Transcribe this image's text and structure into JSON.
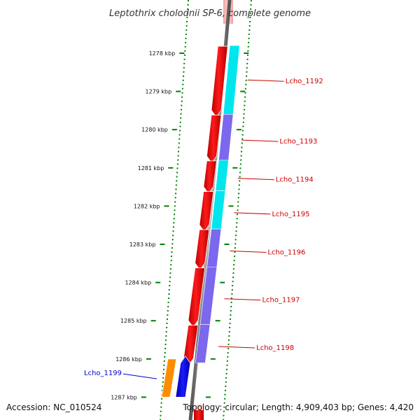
{
  "title": "Leptothrix cholodnii SP-6, complete genome",
  "accession": "Accession: NC_010524",
  "summary": "Topology: circular; Length: 4,909,403 bp; Genes: 4,420",
  "ticks": [
    {
      "label": "1278 kbp",
      "kbp": 1278
    },
    {
      "label": "1279 kbp",
      "kbp": 1279
    },
    {
      "label": "1280 kbp",
      "kbp": 1280
    },
    {
      "label": "1281 kbp",
      "kbp": 1281
    },
    {
      "label": "1282 kbp",
      "kbp": 1282
    },
    {
      "label": "1283 kbp",
      "kbp": 1283
    },
    {
      "label": "1284 kbp",
      "kbp": 1284
    },
    {
      "label": "1285 kbp",
      "kbp": 1285
    },
    {
      "label": "1286 kbp",
      "kbp": 1286
    },
    {
      "label": "1287 kbp",
      "kbp": 1287
    }
  ],
  "genes": [
    {
      "label": "Lcho_1192",
      "start_kbp": 1277.8,
      "end_kbp": 1279.6,
      "strand": "minus",
      "feature_color": "#00e5ee",
      "label_color": "#cc0000"
    },
    {
      "label": "Lcho_1193",
      "start_kbp": 1279.6,
      "end_kbp": 1280.8,
      "strand": "minus",
      "feature_color": "#7b68ee",
      "label_color": "#cc0000"
    },
    {
      "label": "Lcho_1194",
      "start_kbp": 1280.8,
      "end_kbp": 1281.6,
      "strand": "minus",
      "feature_color": "#00e5ee",
      "label_color": "#cc0000"
    },
    {
      "label": "Lcho_1195",
      "start_kbp": 1281.6,
      "end_kbp": 1282.6,
      "strand": "minus",
      "feature_color": "#00e5ee",
      "label_color": "#cc0000"
    },
    {
      "label": "Lcho_1196",
      "start_kbp": 1282.6,
      "end_kbp": 1283.6,
      "strand": "minus",
      "feature_color": "#7b68ee",
      "label_color": "#cc0000"
    },
    {
      "label": "Lcho_1197",
      "start_kbp": 1283.6,
      "end_kbp": 1285.1,
      "strand": "minus",
      "feature_color": "#7b68ee",
      "label_color": "#cc0000"
    },
    {
      "label": "Lcho_1198",
      "start_kbp": 1285.1,
      "end_kbp": 1286.1,
      "strand": "minus",
      "feature_color": "#7b68ee",
      "label_color": "#cc0000"
    },
    {
      "label": "Lcho_1199",
      "start_kbp": 1286.0,
      "end_kbp": 1287.0,
      "strand": "plus",
      "feature_color": "#ff8c00",
      "label_color": "#0000cc"
    }
  ],
  "colors": {
    "backbone": "#888888",
    "cds_minus": "#ff0000",
    "cds_plus": "#0000ff",
    "scale_ticks": "#008000",
    "title_text": "#333333"
  }
}
